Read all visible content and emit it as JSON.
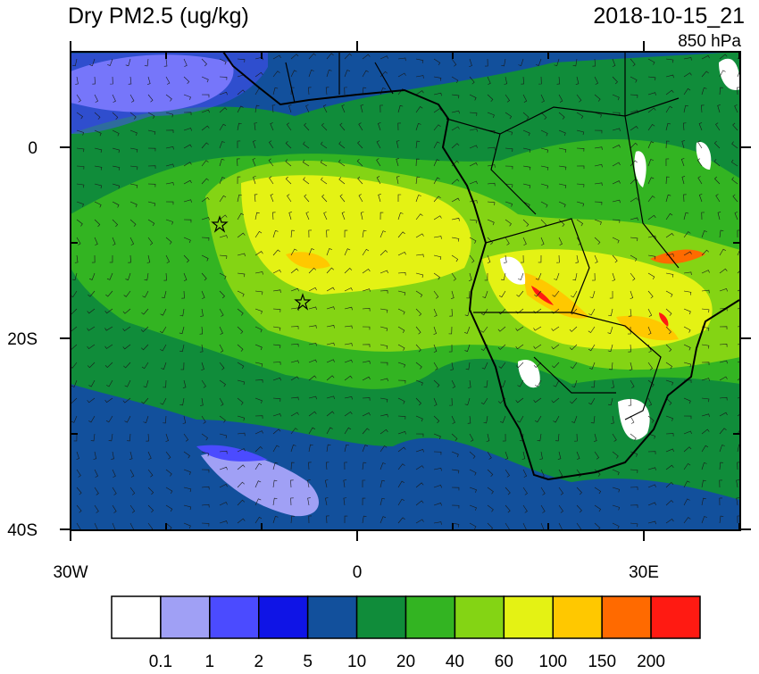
{
  "map": {
    "title": "Dry PM2.5 (ug/kg)",
    "valid_time": "2018-10-15_21",
    "level": "850 hPa",
    "lat_labels": [
      "0",
      "20S",
      "40S"
    ],
    "lon_labels": [
      "30W",
      "0",
      "30E"
    ]
  },
  "colorbar": {
    "colors": [
      "#ffffff",
      "#a0a0f5",
      "#4b4bff",
      "#0f14e6",
      "#12509c",
      "#108c3a",
      "#33b422",
      "#84d414",
      "#e4f214",
      "#ffc800",
      "#ff6a00",
      "#ff1a12"
    ],
    "labels": [
      "0.1",
      "1",
      "2",
      "5",
      "10",
      "20",
      "40",
      "60",
      "100",
      "150",
      "200"
    ]
  }
}
